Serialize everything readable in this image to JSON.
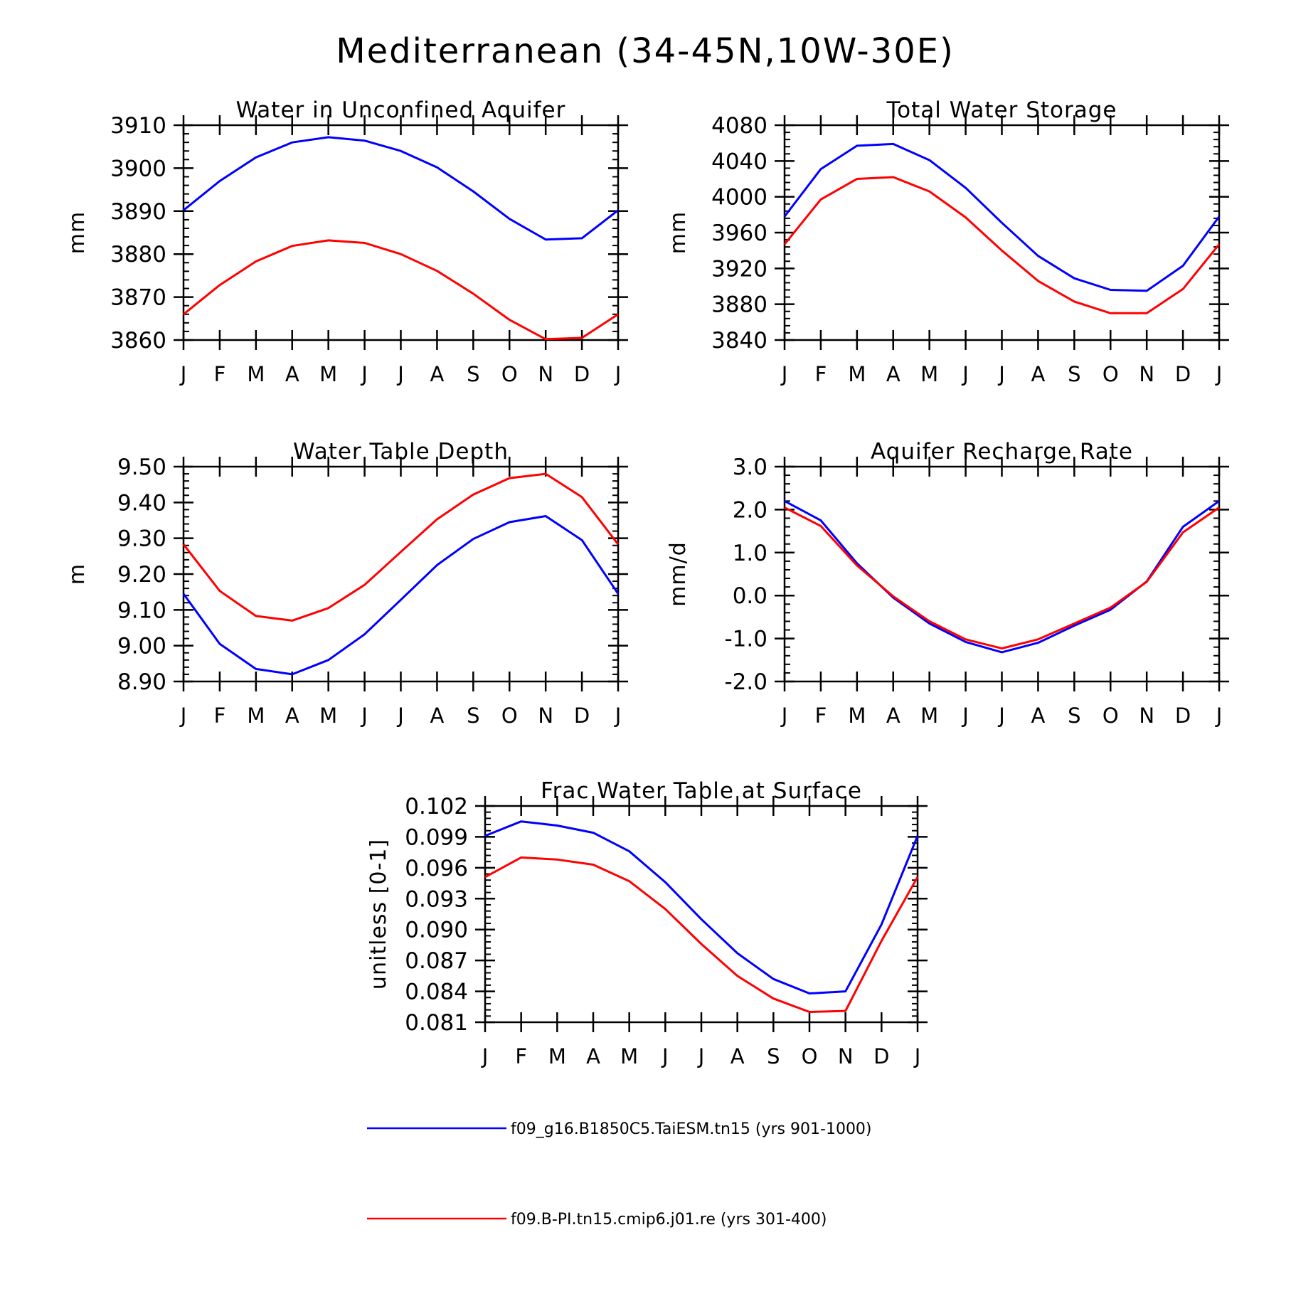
{
  "title": "Mediterranean (34-45N,10W-30E)",
  "colors": {
    "series1": "#0000ff",
    "series2": "#ff0000",
    "axis": "#000000"
  },
  "legend": {
    "placement": "bottom-center",
    "entries": [
      "f09_g16.B1850C5.TaiESM.tn15 (yrs 901-1000)",
      "f09.B-PI.tn15.cmip6.j01.re (yrs 301-400)"
    ]
  },
  "chart_data": [
    {
      "type": "line",
      "title": "Water in Unconfined Aquifer",
      "ylabel": "mm",
      "categories": [
        "J",
        "F",
        "M",
        "A",
        "M",
        "J",
        "J",
        "A",
        "S",
        "O",
        "N",
        "D",
        "J"
      ],
      "ylim": [
        3860,
        3910
      ],
      "yticks": [
        "3910",
        "3900",
        "3890",
        "3880",
        "3870",
        "3860"
      ],
      "yticks_values": [
        3910,
        3900,
        3890,
        3880,
        3870,
        3860
      ],
      "grid": false,
      "series": [
        {
          "name": "f09_g16.B1850C5.TaiESM.tn15 (yrs 901-1000)",
          "values": [
            3890.2,
            3897.0,
            3902.5,
            3906.0,
            3907.2,
            3906.4,
            3904.0,
            3900.2,
            3894.6,
            3888.2,
            3883.4,
            3883.7,
            3890.2
          ]
        },
        {
          "name": "f09.B-PI.tn15.cmip6.j01.re (yrs 301-400)",
          "values": [
            3866.0,
            3872.8,
            3878.3,
            3881.9,
            3883.2,
            3882.6,
            3880.0,
            3876.1,
            3870.8,
            3864.7,
            3860.2,
            3860.5,
            3866.0
          ]
        }
      ]
    },
    {
      "type": "line",
      "title": "Total Water Storage",
      "ylabel": "mm",
      "categories": [
        "J",
        "F",
        "M",
        "A",
        "M",
        "J",
        "J",
        "A",
        "S",
        "O",
        "N",
        "D",
        "J"
      ],
      "ylim": [
        3840,
        4080
      ],
      "yticks": [
        "4080",
        "4040",
        "4000",
        "3960",
        "3920",
        "3880",
        "3840"
      ],
      "yticks_values": [
        4080,
        4040,
        4000,
        3960,
        3920,
        3880,
        3840
      ],
      "grid": false,
      "series": [
        {
          "name": "f09_g16.B1850C5.TaiESM.tn15 (yrs 901-1000)",
          "values": [
            3978,
            4031,
            4057,
            4059,
            4041,
            4010,
            3971,
            3934,
            3909,
            3896,
            3895,
            3923,
            3978
          ]
        },
        {
          "name": "f09.B-PI.tn15.cmip6.j01.re (yrs 301-400)",
          "values": [
            3947,
            3997,
            4020,
            4022,
            4006,
            3977,
            3940,
            3906,
            3883,
            3870,
            3870,
            3897,
            3947
          ]
        }
      ]
    },
    {
      "type": "line",
      "title": "Water Table Depth",
      "ylabel": "m",
      "categories": [
        "J",
        "F",
        "M",
        "A",
        "M",
        "J",
        "J",
        "A",
        "S",
        "O",
        "N",
        "D",
        "J"
      ],
      "ylim": [
        8.9,
        9.5
      ],
      "yticks": [
        "9.50",
        "9.40",
        "9.30",
        "9.20",
        "9.10",
        "9.00",
        "8.90"
      ],
      "yticks_values": [
        9.5,
        9.4,
        9.3,
        9.2,
        9.1,
        9.0,
        8.9
      ],
      "grid": false,
      "series": [
        {
          "name": "f09_g16.B1850C5.TaiESM.tn15 (yrs 901-1000)",
          "values": [
            9.145,
            9.005,
            8.935,
            8.92,
            8.96,
            9.032,
            9.128,
            9.225,
            9.298,
            9.345,
            9.362,
            9.295,
            9.145
          ]
        },
        {
          "name": "f09.B-PI.tn15.cmip6.j01.re (yrs 301-400)",
          "values": [
            9.283,
            9.153,
            9.083,
            9.07,
            9.105,
            9.17,
            9.262,
            9.353,
            9.422,
            9.468,
            9.48,
            9.415,
            9.283
          ]
        }
      ]
    },
    {
      "type": "line",
      "title": "Aquifer Recharge Rate",
      "ylabel": "mm/d",
      "categories": [
        "J",
        "F",
        "M",
        "A",
        "M",
        "J",
        "J",
        "A",
        "S",
        "O",
        "N",
        "D",
        "J"
      ],
      "ylim": [
        -2.0,
        3.0
      ],
      "yticks": [
        "3.0",
        "2.0",
        "1.0",
        "0.0",
        "-1.0",
        "-2.0"
      ],
      "yticks_values": [
        3,
        2,
        1,
        0,
        -1,
        -2
      ],
      "grid": false,
      "series": [
        {
          "name": "f09_g16.B1850C5.TaiESM.tn15 (yrs 901-1000)",
          "values": [
            2.2,
            1.75,
            0.75,
            -0.05,
            -0.65,
            -1.08,
            -1.32,
            -1.1,
            -0.7,
            -0.33,
            0.33,
            1.6,
            2.2
          ]
        },
        {
          "name": "f09.B-PI.tn15.cmip6.j01.re (yrs 301-400)",
          "values": [
            2.05,
            1.62,
            0.7,
            -0.02,
            -0.6,
            -1.02,
            -1.23,
            -1.02,
            -0.65,
            -0.28,
            0.32,
            1.47,
            2.05
          ]
        }
      ]
    },
    {
      "type": "line",
      "title": "Frac Water Table at Surface",
      "ylabel": "unitless [0-1]",
      "categories": [
        "J",
        "F",
        "M",
        "A",
        "M",
        "J",
        "J",
        "A",
        "S",
        "O",
        "N",
        "D",
        "J"
      ],
      "ylim": [
        0.081,
        0.102
      ],
      "yticks": [
        "0.102",
        "0.099",
        "0.096",
        "0.093",
        "0.090",
        "0.087",
        "0.084",
        "0.081"
      ],
      "yticks_values": [
        0.102,
        0.099,
        0.096,
        0.093,
        0.09,
        0.087,
        0.084,
        0.081
      ],
      "grid": false,
      "series": [
        {
          "name": "f09_g16.B1850C5.TaiESM.tn15 (yrs 901-1000)",
          "values": [
            0.0991,
            0.1005,
            0.1001,
            0.0994,
            0.0976,
            0.0946,
            0.091,
            0.0877,
            0.0852,
            0.0838,
            0.084,
            0.0905,
            0.0991
          ]
        },
        {
          "name": "f09.B-PI.tn15.cmip6.j01.re (yrs 301-400)",
          "values": [
            0.0951,
            0.097,
            0.0968,
            0.0963,
            0.0947,
            0.092,
            0.0886,
            0.0855,
            0.0833,
            0.082,
            0.0821,
            0.0889,
            0.0951
          ]
        }
      ]
    }
  ]
}
